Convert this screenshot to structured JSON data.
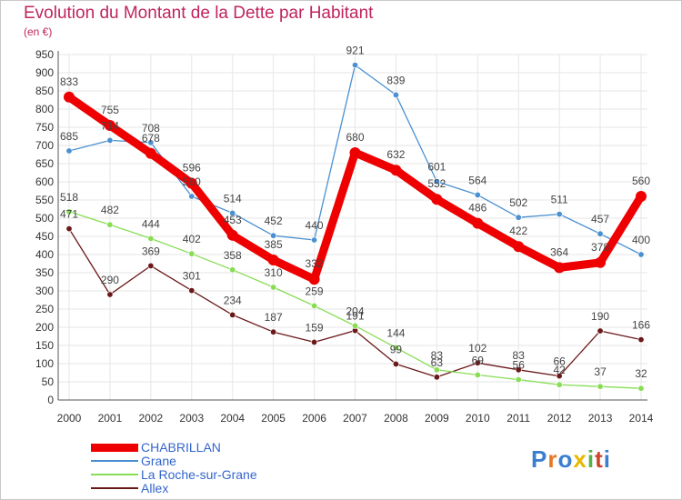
{
  "header": {
    "title": "Evolution du Montant de la Dette par Habitant",
    "subtitle": "(en €)"
  },
  "logo": {
    "text": "Proxiti"
  },
  "chart_data": {
    "type": "line",
    "title": "Evolution du Montant de la Dette par Habitant",
    "subtitle": "(en €)",
    "xlabel": "",
    "ylabel": "",
    "x": [
      "2000",
      "2001",
      "2002",
      "2003",
      "2004",
      "2005",
      "2006",
      "2007",
      "2008",
      "2009",
      "2010",
      "2011",
      "2012",
      "2013",
      "2014"
    ],
    "ylim": [
      0,
      950
    ],
    "yticks": [
      0,
      50,
      100,
      150,
      200,
      250,
      300,
      350,
      400,
      450,
      500,
      550,
      600,
      650,
      700,
      750,
      800,
      850,
      900,
      950
    ],
    "grid": true,
    "legend_position": "bottom-left",
    "series": [
      {
        "name": "CHABRILLAN",
        "color": "#ee0000",
        "values": [
          833,
          755,
          678,
          596,
          453,
          385,
          332,
          680,
          632,
          552,
          486,
          422,
          364,
          378,
          560
        ]
      },
      {
        "name": "Grane",
        "color": "#4a90d0",
        "values": [
          685,
          714,
          708,
          560,
          514,
          452,
          440,
          921,
          839,
          601,
          564,
          502,
          511,
          457,
          400
        ]
      },
      {
        "name": "La Roche-sur-Grane",
        "color": "#88dd55",
        "values": [
          518,
          482,
          444,
          402,
          358,
          310,
          259,
          204,
          144,
          83,
          69,
          56,
          42,
          37,
          32
        ]
      },
      {
        "name": "Allex",
        "color": "#6b1818",
        "values": [
          471,
          290,
          369,
          301,
          234,
          187,
          159,
          191,
          99,
          63,
          102,
          83,
          66,
          190,
          166
        ]
      }
    ]
  }
}
